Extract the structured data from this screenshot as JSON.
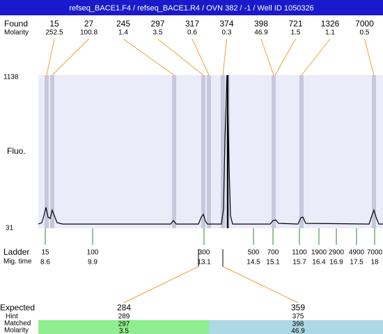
{
  "header": {
    "title": "refseq_BACE1.F4 / refseq_BACE1.R4 / OVN 382 / -1 / Well ID 1050326"
  },
  "found": {
    "label": "Found",
    "molarity_label": "Molarity",
    "peaks": [
      {
        "size": 15,
        "molarity": 252.5
      },
      {
        "size": 27,
        "molarity": 100.8
      },
      {
        "size": 245,
        "molarity": 1.4
      },
      {
        "size": 297,
        "molarity": 3.5
      },
      {
        "size": 317,
        "molarity": 0.6
      },
      {
        "size": 374,
        "molarity": 0.3
      },
      {
        "size": 398,
        "molarity": 46.9
      },
      {
        "size": 721,
        "molarity": 1.5
      },
      {
        "size": 1326,
        "molarity": 1.1
      },
      {
        "size": 7000,
        "molarity": 0.5
      }
    ]
  },
  "y_axis": {
    "label": "Fluo.",
    "max": 1138,
    "min": 31
  },
  "ladder": {
    "label": "Ladder",
    "time_label": "Mig. time",
    "peaks": [
      {
        "size": 15,
        "time": 8.6
      },
      {
        "size": 100,
        "time": 9.9
      },
      {
        "size": 300,
        "time": 13.1
      },
      {
        "size": 500,
        "time": 14.5
      },
      {
        "size": 700,
        "time": 15.1
      },
      {
        "size": 1100,
        "time": 15.7
      },
      {
        "size": 1900,
        "time": 16.4
      },
      {
        "size": 2900,
        "time": 16.9
      },
      {
        "size": 4900,
        "time": 17.5
      },
      {
        "size": 7000,
        "time": 18
      }
    ]
  },
  "expected": {
    "label": "Expected",
    "hint_label": "Hint",
    "matched_label": "Matched",
    "molarity_label": "Molarity",
    "rows": [
      {
        "expected": 284,
        "hint": 289,
        "matched": 297,
        "molarity": 3.5
      },
      {
        "expected": 359,
        "hint": 375,
        "matched": 398,
        "molarity": 46.9
      }
    ]
  }
}
